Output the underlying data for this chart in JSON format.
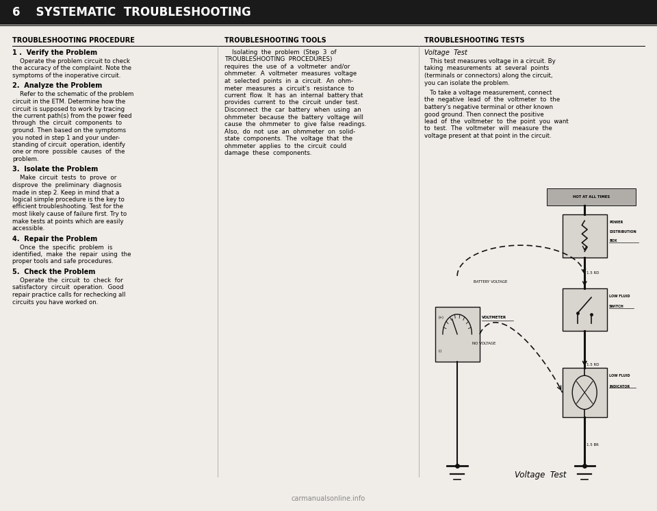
{
  "bg_color": "#f0ede8",
  "title_bar_color": "#1a1a1a",
  "title_bar_text": "6    SYSTEMATIC  TROUBLESHOOTING",
  "title_bar_text_color": "#ffffff",
  "col1_header": "TROUBLESHOOTING PROCEDURE",
  "col2_header": "TROUBLESHOOTING TOOLS",
  "col3_header": "TROUBLESHOOTING TESTS",
  "col1_items": [
    {
      "bold": true,
      "indent": false,
      "text": "1 .  Verify the Problem"
    },
    {
      "bold": false,
      "indent": true,
      "text": "Operate the problem circuit to check\nthe accuracy of the complaint. Note the\nsymptoms of the inoperative circuit."
    },
    {
      "bold": true,
      "indent": false,
      "text": "2.  Analyze the Problem"
    },
    {
      "bold": false,
      "indent": true,
      "text": "Refer to the schematic of the problem\ncircuit in the ETM. Determine how the\ncircuit is supposed to work by tracing\nthe current path(s) from the power feed\nthrough  the  circuit  components  to\nground. Then based on the symptoms\nyou noted in step 1 and your under-\nstanding of circuit  operation, identify\none or more  possible  causes  of  the\nproblem."
    },
    {
      "bold": true,
      "indent": false,
      "text": "3.  Isolate the Problem"
    },
    {
      "bold": false,
      "indent": true,
      "text": "Make  circuit  tests  to  prove  or\ndisprove  the  preliminary  diagnosis\nmade in step 2. Keep in mind that a\nlogical simple procedure is the key to\nefficient troubleshooting. Test for the\nmost likely cause of failure first. Try to\nmake tests at points which are easily\naccessible."
    },
    {
      "bold": true,
      "indent": false,
      "text": "4.  Repair the Problem"
    },
    {
      "bold": false,
      "indent": true,
      "text": "Once  the  specific  problem  is\nidentified,  make  the  repair  using  the\nproper tools and safe procedures."
    },
    {
      "bold": true,
      "indent": false,
      "text": "5.  Check the Problem"
    },
    {
      "bold": false,
      "indent": true,
      "text": "Operate  the  circuit  to  check  for\nsatisfactory  circuit  operation.  Good\nrepair practice calls for rechecking all\ncircuits you have worked on."
    }
  ],
  "col2_lines": [
    "    Isolating  the  problem  (Step  3  of",
    "TROUBLESHOOTING  PROCEDURES)",
    "requires  the  use  of  a  voltmeter  and/or",
    "ohmmeter.  A  voltmeter  measures  voltage",
    "at  selected  points  in  a  circuit.  An  ohm-",
    "meter  measures  a  circuit's  resistance  to",
    "current  flow.  It  has  an  internal  battery that",
    "provides  current  to  the  circuit  under  test.",
    "Disconnect  the  car  battery  when  using  an",
    "ohmmeter  because  the  battery  voltage  will",
    "cause  the  ohmmeter  to  give  false  readings.",
    "Also,  do  not  use  an  ohmmeter  on  solid-",
    "state  components.  The  voltage  that  the",
    "ohmmeter  applies  to  the  circuit  could",
    "damage  these  components."
  ],
  "col2_bold_words": [
    "voltmeter",
    "ohmmeter"
  ],
  "col3_subheader": "Voltage  Test",
  "col3_para1_lines": [
    "   This test measures voltage in a circuit. By",
    "taking  measurements  at  several  points",
    "(terminals or connectors) along the circuit,",
    "you can isolate the problem."
  ],
  "col3_para2_lines": [
    "   To take a voltage measurement, connect",
    "the  negative  lead  of  the  voltmeter  to  the",
    "battery's negative terminal or other known",
    "good ground. Then connect the positive",
    "lead  of  the  voltmeter  to  the  point  you  want",
    "to  test.  The  voltmeter  will  measure  the",
    "voltage present at that point in the circuit."
  ],
  "diagram_caption": "Voltage  Test",
  "watermark": "carmanualsonline.info",
  "box_fill": "#d8d4ce",
  "line_color": "#111111"
}
